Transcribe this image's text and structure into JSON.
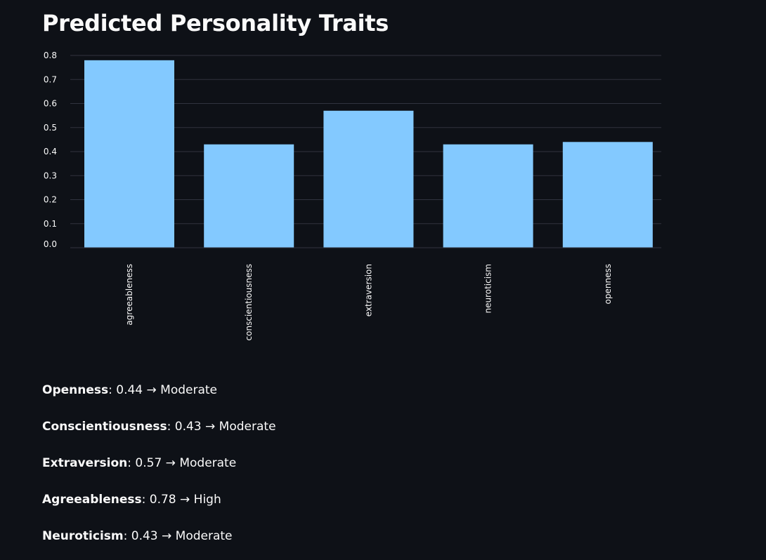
{
  "header": {
    "title": "Predicted Personality Traits"
  },
  "colors": {
    "background": "#0e1117",
    "bar": "#83c9ff",
    "grid": "#31333f",
    "text": "#fafafa"
  },
  "chart_data": {
    "type": "bar",
    "title": "",
    "xlabel": "",
    "ylabel": "",
    "categories": [
      "agreeableness",
      "conscientiousness",
      "extraversion",
      "neuroticism",
      "openness"
    ],
    "values": [
      0.78,
      0.43,
      0.57,
      0.43,
      0.44
    ],
    "ylim": [
      0,
      0.8
    ],
    "yticks": [
      "0.0",
      "0.1",
      "0.2",
      "0.3",
      "0.4",
      "0.5",
      "0.6",
      "0.7",
      "0.8"
    ],
    "grid": true,
    "legend": "none"
  },
  "traits": [
    {
      "name": "Openness",
      "text": ": 0.44 → Moderate"
    },
    {
      "name": "Conscientiousness",
      "text": ": 0.43 → Moderate"
    },
    {
      "name": "Extraversion",
      "text": ": 0.57 → Moderate"
    },
    {
      "name": "Agreeableness",
      "text": ": 0.78 → High"
    },
    {
      "name": "Neuroticism",
      "text": ": 0.43 → Moderate"
    }
  ]
}
